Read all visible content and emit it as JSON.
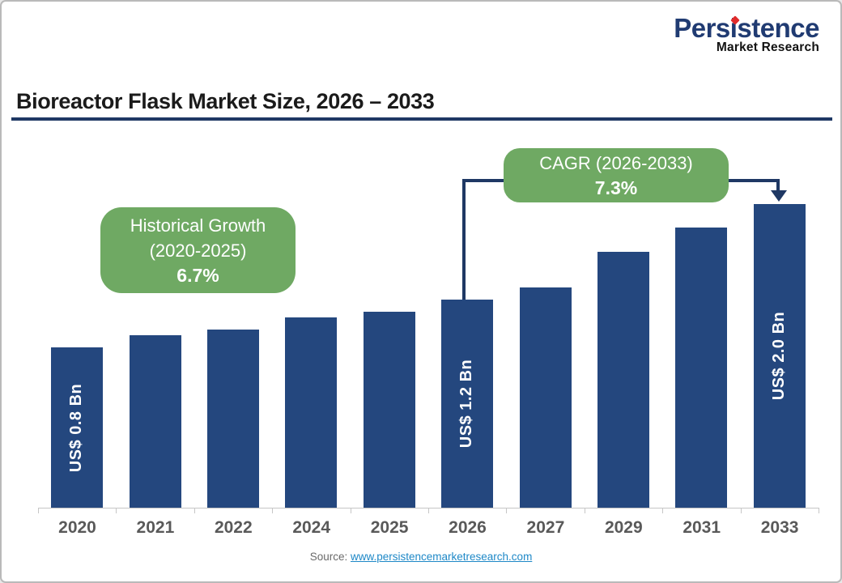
{
  "logo": {
    "name": "Persistence",
    "tagline": "Market Research",
    "brand_navy": "#203B72",
    "brand_red": "#E02B2B"
  },
  "header": {
    "title": "Bioreactor Flask Market Size, 2026 – 2033"
  },
  "source": {
    "label": "Source:",
    "link": "www.persistencemarketresearch.com"
  },
  "colors": {
    "bar_blue": "#24477E",
    "accent_navy": "#1F3864",
    "badge_green": "#6FA963",
    "link_blue": "#1E88C7",
    "axis_gray": "#C6C6C6",
    "tick_label_gray": "#595959"
  },
  "chart_data": {
    "type": "bar",
    "title": "Bioreactor Flask Market Size, 2026 – 2033",
    "xlabel": "",
    "ylabel": "",
    "value_unit": "US$ Bn",
    "ylim": [
      0,
      2.2
    ],
    "grid": false,
    "legend": false,
    "categories": [
      "2020",
      "2021",
      "2022",
      "2024",
      "2025",
      "2026",
      "2027",
      "2029",
      "2031",
      "2033"
    ],
    "values": [
      0.8,
      0.9,
      0.95,
      1.05,
      1.1,
      1.2,
      1.3,
      1.6,
      1.8,
      2.0
    ],
    "labeled_values_note": "only 2020, 2026 and 2033 carry on-bar labels; other values estimated from bar heights",
    "bar_value_labels": {
      "2020": "US$ 0.8 Bn",
      "2026": "US$ 1.2 Bn",
      "2033": "US$ 2.0 Bn"
    },
    "annotations": {
      "historical": {
        "line1": "Historical Growth",
        "line2": "(2020-2025)",
        "value": "6.7%"
      },
      "cagr": {
        "line1": "CAGR (2026-2033)",
        "value": "7.3%",
        "arrow_from": "2026",
        "arrow_to": "2033"
      }
    }
  }
}
